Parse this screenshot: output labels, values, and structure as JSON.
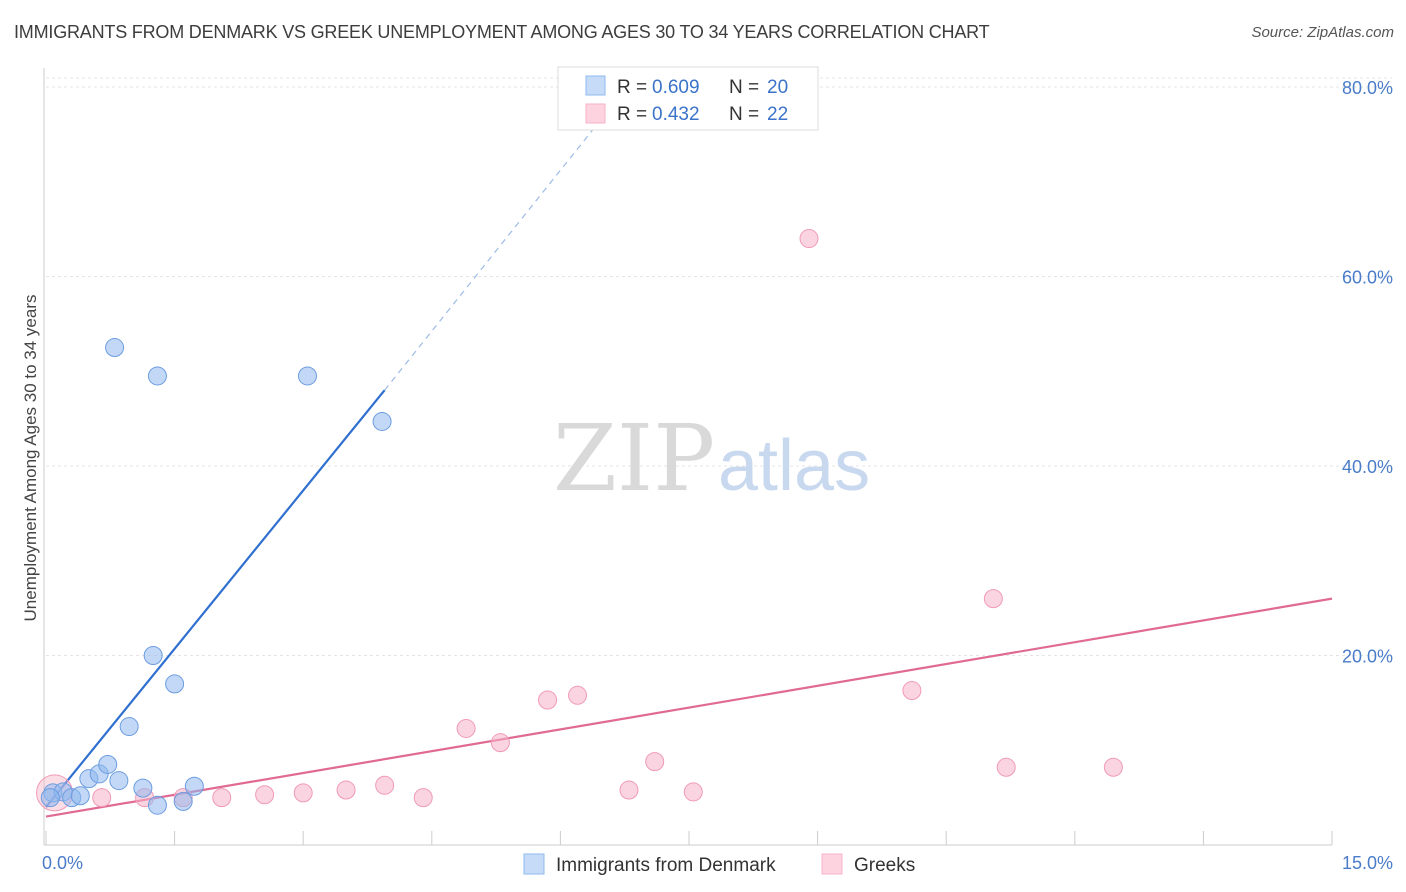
{
  "title": "IMMIGRANTS FROM DENMARK VS GREEK UNEMPLOYMENT AMONG AGES 30 TO 34 YEARS CORRELATION CHART",
  "source": "Source: ZipAtlas.com",
  "watermark": {
    "zip": "ZIP",
    "atlas": "atlas"
  },
  "chart_data": {
    "type": "scatter",
    "title": "IMMIGRANTS FROM DENMARK VS GREEK UNEMPLOYMENT AMONG AGES 30 TO 34 YEARS CORRELATION CHART",
    "xlabel": "",
    "ylabel": "Unemployment Among Ages 30 to 34 years",
    "xlim": [
      0,
      15
    ],
    "ylim": [
      0,
      82
    ],
    "x_tick_labels": [
      "0.0%",
      "15.0%"
    ],
    "y_ticks": [
      20,
      40,
      60,
      80
    ],
    "y_tick_labels": [
      "20.0%",
      "40.0%",
      "60.0%",
      "80.0%"
    ],
    "grid": true,
    "legend_position": "top-center",
    "series": [
      {
        "name": "Immigrants from Denmark",
        "color": "#8fb8ef",
        "line_color": "#2f6fcf",
        "R": "0.609",
        "N": "20",
        "points": [
          {
            "x": 0.08,
            "y": 5.5
          },
          {
            "x": 0.2,
            "y": 5.6
          },
          {
            "x": 0.3,
            "y": 5.0
          },
          {
            "x": 0.4,
            "y": 5.2
          },
          {
            "x": 0.5,
            "y": 7.0
          },
          {
            "x": 0.62,
            "y": 7.5
          },
          {
            "x": 0.72,
            "y": 8.5
          },
          {
            "x": 0.85,
            "y": 6.8
          },
          {
            "x": 0.97,
            "y": 12.5
          },
          {
            "x": 1.13,
            "y": 6.0
          },
          {
            "x": 1.25,
            "y": 20.0
          },
          {
            "x": 1.3,
            "y": 4.2
          },
          {
            "x": 1.5,
            "y": 17.0
          },
          {
            "x": 1.6,
            "y": 4.6
          },
          {
            "x": 1.73,
            "y": 6.2
          },
          {
            "x": 0.8,
            "y": 52.5
          },
          {
            "x": 1.3,
            "y": 49.5
          },
          {
            "x": 3.05,
            "y": 49.5
          },
          {
            "x": 3.92,
            "y": 44.7
          },
          {
            "x": 0.05,
            "y": 5.0
          }
        ],
        "trend": {
          "x0": 0.0,
          "y0": 4.0,
          "x1": 3.95,
          "y1": 48.0,
          "dash_x1": 6.6,
          "dash_y1": 78.0
        }
      },
      {
        "name": "Greeks",
        "color": "#f6b3c8",
        "line_color": "#e06a93",
        "R": "0.432",
        "N": "22",
        "points": [
          {
            "x": 0.1,
            "y": 5.5
          },
          {
            "x": 0.65,
            "y": 5.0
          },
          {
            "x": 1.15,
            "y": 5.0
          },
          {
            "x": 1.6,
            "y": 5.0
          },
          {
            "x": 2.05,
            "y": 5.0
          },
          {
            "x": 2.55,
            "y": 5.3
          },
          {
            "x": 3.0,
            "y": 5.5
          },
          {
            "x": 3.5,
            "y": 5.8
          },
          {
            "x": 3.95,
            "y": 6.3
          },
          {
            "x": 4.4,
            "y": 5.0
          },
          {
            "x": 4.9,
            "y": 12.3
          },
          {
            "x": 5.3,
            "y": 10.8
          },
          {
            "x": 5.85,
            "y": 15.3
          },
          {
            "x": 6.2,
            "y": 15.8
          },
          {
            "x": 6.8,
            "y": 5.8
          },
          {
            "x": 7.1,
            "y": 8.8
          },
          {
            "x": 7.55,
            "y": 5.6
          },
          {
            "x": 8.9,
            "y": 64.0
          },
          {
            "x": 10.1,
            "y": 16.3
          },
          {
            "x": 11.05,
            "y": 26.0
          },
          {
            "x": 11.2,
            "y": 8.2
          },
          {
            "x": 12.45,
            "y": 8.2
          }
        ],
        "trend": {
          "x0": 0.0,
          "y0": 3.0,
          "x1": 15.0,
          "y1": 26.0
        }
      }
    ]
  },
  "legend": {
    "r_label": "R =",
    "n_label": "N =",
    "rows": [
      {
        "r": "0.609",
        "n": "20"
      },
      {
        "r": "0.432",
        "n": "22"
      }
    ]
  },
  "bottom_legend": [
    "Immigrants from Denmark",
    "Greeks"
  ]
}
